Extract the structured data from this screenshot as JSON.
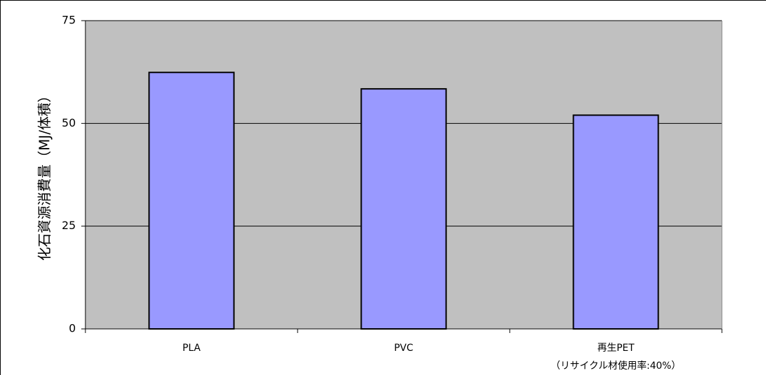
{
  "chart_data": {
    "type": "bar",
    "y_label": "化石資源消費量（MJ/体積）",
    "categories": [
      "PLA",
      "PVC",
      "再生PET"
    ],
    "category_sublabels": [
      null,
      null,
      "（リサイクル材使用率:40%）"
    ],
    "values": [
      62.4,
      58.4,
      52.0
    ],
    "color": "#9999ff",
    "ylim": [
      0,
      75
    ],
    "yticks": [
      0,
      25,
      50,
      75
    ],
    "grid": true
  }
}
